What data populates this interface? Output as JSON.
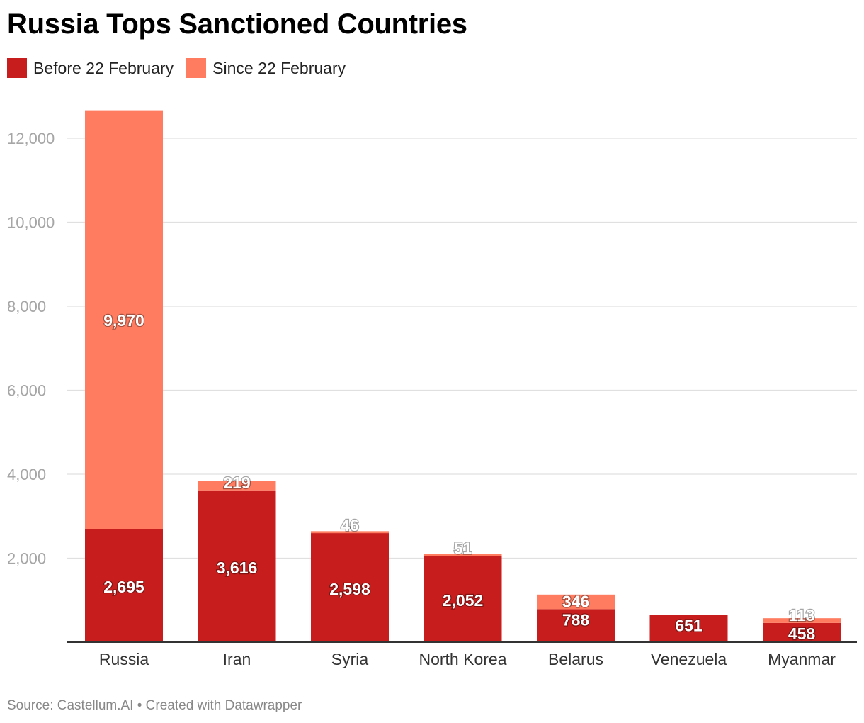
{
  "title": "Russia Tops Sanctioned Countries",
  "legend": [
    {
      "label": "Before 22 February",
      "color": "#c71e1d"
    },
    {
      "label": "Since 22 February",
      "color": "#ff7c61"
    }
  ],
  "source": "Source: Castellum.AI • Created with Datawrapper",
  "chart_data": {
    "type": "bar",
    "stacked": true,
    "title": "Russia Tops Sanctioned Countries",
    "categories": [
      "Russia",
      "Iran",
      "Syria",
      "North Korea",
      "Belarus",
      "Venezuela",
      "Myanmar"
    ],
    "series": [
      {
        "name": "Before 22 February",
        "color": "#c71e1d",
        "values": [
          2695,
          3616,
          2598,
          2052,
          788,
          651,
          458
        ]
      },
      {
        "name": "Since 22 February",
        "color": "#ff7c61",
        "values": [
          9970,
          219,
          46,
          51,
          346,
          0,
          113
        ]
      }
    ],
    "data_labels": [
      [
        "2,695",
        "3,616",
        "2,598",
        "2,052",
        "788",
        "651",
        "458"
      ],
      [
        "9,970",
        "219",
        "46",
        "51",
        "346",
        "",
        "113"
      ]
    ],
    "y_ticks": [
      2000,
      4000,
      6000,
      8000,
      10000,
      12000
    ],
    "y_tick_labels": [
      "2,000",
      "4,000",
      "6,000",
      "8,000",
      "10,000",
      "12,000"
    ],
    "ylim": [
      0,
      12800
    ],
    "grid": true,
    "legend_position": "top-left"
  }
}
